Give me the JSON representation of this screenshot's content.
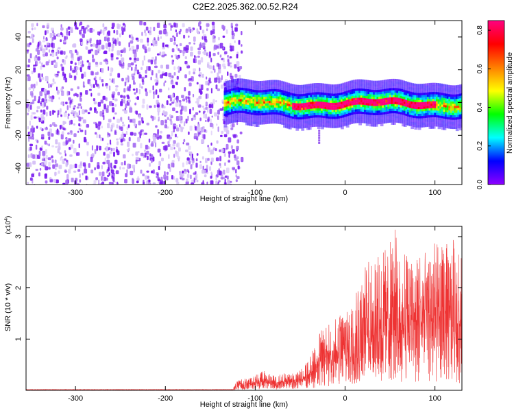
{
  "page": {
    "title": "C2E2.2025.362.00.52.R24"
  },
  "colors": {
    "snr_line": "#ee3333",
    "axis": "#000000",
    "colorbar_stops": [
      "#8e00ff",
      "#0000ff",
      "#00ffff",
      "#00ff00",
      "#ffff00",
      "#ff7f00",
      "#ff0000",
      "#ff0080"
    ]
  },
  "chart_data": [
    {
      "type": "heatmap",
      "name": "spectrogram",
      "title": "C2E2.2025.362.00.52.R24",
      "xlabel": "Height of straight line (km)",
      "ylabel": "Frequency (Hz)",
      "xlim": [
        -355,
        130
      ],
      "ylim": [
        -50,
        50
      ],
      "xticks": [
        -300,
        -200,
        -100,
        0,
        100
      ],
      "yticks": [
        -40,
        -20,
        0,
        20,
        40
      ],
      "noise_region_x": [
        -355,
        -120
      ],
      "signal_band": {
        "x_range": [
          -135,
          130
        ],
        "center_freq_hz": 0,
        "half_width_hz": 8,
        "peak_x_range": [
          -60,
          100
        ]
      },
      "isolated_feature": {
        "x": -30,
        "freq_range_hz": [
          -24,
          -16
        ]
      },
      "colorbar": {
        "label": "Normalized spectral amplitude",
        "range": [
          0.0,
          0.85
        ],
        "ticks": [
          0.0,
          0.2,
          0.4,
          0.6,
          0.8
        ],
        "tick_labels": [
          "0.0",
          "0.2",
          "0.4",
          "0.6",
          "0.8"
        ]
      }
    },
    {
      "type": "line",
      "name": "snr",
      "title": "",
      "xlabel": "Height of straight line (km)",
      "ylabel": "SNR (10 * v/v)",
      "scale_label": "(x10",
      "scale_exponent": "4",
      "xlim": [
        -355,
        130
      ],
      "ylim": [
        0,
        3.2
      ],
      "xticks": [
        -300,
        -200,
        -100,
        0,
        100
      ],
      "yticks": [
        1,
        2,
        3
      ],
      "series": [
        {
          "name": "SNR",
          "envelope_x": [
            -355,
            -125,
            -120,
            -100,
            -90,
            -80,
            -60,
            -50,
            -40,
            -30,
            -20,
            -10,
            0,
            10,
            20,
            30,
            40,
            50,
            55,
            60,
            70,
            80,
            90,
            100,
            110,
            120,
            130
          ],
          "envelope_max": [
            0.02,
            0.02,
            0.2,
            0.3,
            0.4,
            0.3,
            0.35,
            0.4,
            0.6,
            1.1,
            1.3,
            1.4,
            1.6,
            2.0,
            2.4,
            2.6,
            2.7,
            2.9,
            3.2,
            2.8,
            2.7,
            2.8,
            2.7,
            2.9,
            2.8,
            3.0,
            2.6
          ]
        }
      ]
    }
  ]
}
